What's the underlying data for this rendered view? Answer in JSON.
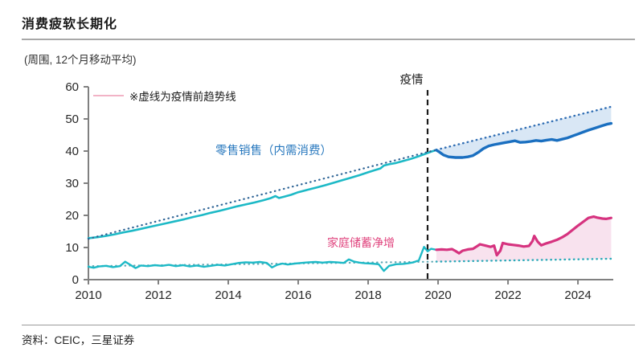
{
  "page": {
    "title": "消费疲软长期化",
    "subtitle": "(周围, 12个月移动平均)",
    "source": "资料：CEIC，三星证券"
  },
  "annotations": {
    "trend_note": "※虚线为疫情前趋势线",
    "pandemic_label": "疫情",
    "retail_label": "零售销售（内需消费）",
    "savings_label": "家庭储蓄净增"
  },
  "colors": {
    "teal_line": "#1db9c6",
    "blue_line": "#1a6fc0",
    "pink_line": "#d6337f",
    "navy_trend_dots": "#2e6496",
    "blue_trend_dots": "#2f6db3",
    "teal_trend_dots": "#2aa9b8",
    "teal_gray_trend_dots": "#5fa8b4",
    "blue_fill": "#d9e7f5",
    "pink_fill": "#f8e2ee",
    "axis": "#808080",
    "tick_text": "#262626",
    "pandemic_dash": "#1a1a1a",
    "note_sample_pink": "#f2b3c6"
  },
  "chart_data": {
    "type": "line",
    "title": "消费疲软长期化",
    "subtitle_units": "(周围, 12个月移动平均)",
    "xlim": [
      2010,
      2025.01
    ],
    "ylim": [
      0,
      60
    ],
    "x_ticks": [
      2010,
      2012,
      2014,
      2016,
      2018,
      2020,
      2022,
      2024
    ],
    "y_ticks": [
      0,
      10,
      20,
      30,
      40,
      50,
      60
    ],
    "grid": false,
    "pandemic_line_x": 2019.7,
    "legend_note": "※虚线为疫情前趋势线 (dashed lines are pre-pandemic trend lines)",
    "series": [
      {
        "name": "家庭储蓄净增-疫情前趋势线",
        "role": "savings_trend_pre",
        "style": "dotted",
        "color_key": "teal_gray_trend_dots",
        "width": 2.2,
        "points": [
          [
            2010.0,
            4.2
          ],
          [
            2019.95,
            5.6
          ]
        ]
      },
      {
        "name": "家庭储蓄净增-疫情前",
        "role": "savings_pre",
        "style": "solid",
        "color_key": "teal_line",
        "width": 2.4,
        "points": [
          [
            2010.0,
            4.0
          ],
          [
            2010.15,
            3.7
          ],
          [
            2010.3,
            4.1
          ],
          [
            2010.5,
            4.3
          ],
          [
            2010.7,
            3.9
          ],
          [
            2010.9,
            4.2
          ],
          [
            2011.05,
            5.6
          ],
          [
            2011.2,
            4.6
          ],
          [
            2011.35,
            3.6
          ],
          [
            2011.5,
            4.4
          ],
          [
            2011.7,
            4.2
          ],
          [
            2011.9,
            4.5
          ],
          [
            2012.1,
            4.3
          ],
          [
            2012.3,
            4.6
          ],
          [
            2012.5,
            4.2
          ],
          [
            2012.7,
            4.5
          ],
          [
            2012.9,
            4.1
          ],
          [
            2013.1,
            4.4
          ],
          [
            2013.3,
            4.0
          ],
          [
            2013.5,
            4.3
          ],
          [
            2013.7,
            4.6
          ],
          [
            2013.9,
            4.4
          ],
          [
            2014.1,
            4.8
          ],
          [
            2014.3,
            5.2
          ],
          [
            2014.5,
            5.4
          ],
          [
            2014.7,
            5.3
          ],
          [
            2014.9,
            5.5
          ],
          [
            2015.1,
            5.2
          ],
          [
            2015.25,
            3.8
          ],
          [
            2015.4,
            4.6
          ],
          [
            2015.55,
            5.0
          ],
          [
            2015.7,
            4.7
          ],
          [
            2015.9,
            5.0
          ],
          [
            2016.1,
            5.2
          ],
          [
            2016.3,
            5.4
          ],
          [
            2016.5,
            5.5
          ],
          [
            2016.7,
            5.3
          ],
          [
            2016.9,
            5.5
          ],
          [
            2017.1,
            5.4
          ],
          [
            2017.3,
            5.2
          ],
          [
            2017.45,
            6.3
          ],
          [
            2017.6,
            5.6
          ],
          [
            2017.75,
            5.3
          ],
          [
            2017.9,
            5.1
          ],
          [
            2018.1,
            5.0
          ],
          [
            2018.3,
            4.8
          ],
          [
            2018.45,
            2.7
          ],
          [
            2018.6,
            4.3
          ],
          [
            2018.8,
            4.8
          ],
          [
            2019.0,
            4.9
          ],
          [
            2019.15,
            5.1
          ],
          [
            2019.3,
            5.4
          ],
          [
            2019.45,
            6.0
          ],
          [
            2019.6,
            10.2
          ],
          [
            2019.7,
            8.8
          ],
          [
            2019.8,
            9.6
          ],
          [
            2019.95,
            9.3
          ]
        ]
      },
      {
        "name": "零售销售-疫情前",
        "role": "retail_pre",
        "style": "solid",
        "color_key": "teal_line",
        "width": 2.6,
        "points": [
          [
            2010.0,
            12.9
          ],
          [
            2010.25,
            13.2
          ],
          [
            2010.5,
            13.6
          ],
          [
            2010.75,
            14.1
          ],
          [
            2011.0,
            14.7
          ],
          [
            2011.25,
            15.2
          ],
          [
            2011.5,
            15.8
          ],
          [
            2011.75,
            16.4
          ],
          [
            2012.0,
            17.0
          ],
          [
            2012.25,
            17.6
          ],
          [
            2012.5,
            18.2
          ],
          [
            2012.75,
            18.8
          ],
          [
            2013.0,
            19.5
          ],
          [
            2013.25,
            20.1
          ],
          [
            2013.5,
            20.8
          ],
          [
            2013.75,
            21.4
          ],
          [
            2014.0,
            22.1
          ],
          [
            2014.25,
            22.8
          ],
          [
            2014.5,
            23.4
          ],
          [
            2014.75,
            24.0
          ],
          [
            2015.0,
            24.7
          ],
          [
            2015.2,
            25.3
          ],
          [
            2015.35,
            26.0
          ],
          [
            2015.45,
            25.4
          ],
          [
            2015.6,
            25.8
          ],
          [
            2015.8,
            26.4
          ],
          [
            2016.0,
            27.2
          ],
          [
            2016.25,
            27.9
          ],
          [
            2016.5,
            28.6
          ],
          [
            2016.75,
            29.3
          ],
          [
            2017.0,
            30.1
          ],
          [
            2017.25,
            30.9
          ],
          [
            2017.5,
            31.7
          ],
          [
            2017.75,
            32.5
          ],
          [
            2018.0,
            33.4
          ],
          [
            2018.2,
            34.1
          ],
          [
            2018.35,
            34.6
          ],
          [
            2018.45,
            35.5
          ],
          [
            2018.6,
            35.9
          ],
          [
            2018.8,
            36.3
          ],
          [
            2019.0,
            36.9
          ],
          [
            2019.2,
            37.5
          ],
          [
            2019.4,
            38.2
          ],
          [
            2019.6,
            39.0
          ],
          [
            2019.8,
            39.8
          ],
          [
            2019.95,
            40.3
          ]
        ]
      },
      {
        "name": "零售销售-疫情前趋势线",
        "role": "retail_trend_pre",
        "style": "dotted",
        "color_key": "navy_trend_dots",
        "width": 2.2,
        "points": [
          [
            2010.0,
            12.7
          ],
          [
            2019.95,
            40.4
          ]
        ]
      },
      {
        "name": "零售销售-趋势延长线",
        "role": "retail_trend_post",
        "style": "dotted",
        "color_key": "blue_trend_dots",
        "width": 2.4,
        "points": [
          [
            2019.95,
            40.4
          ],
          [
            2024.95,
            53.8
          ]
        ]
      },
      {
        "name": "家庭储蓄净增-趋势延长线",
        "role": "savings_trend_post",
        "style": "dotted",
        "color_key": "teal_trend_dots",
        "width": 2.4,
        "points": [
          [
            2019.95,
            5.6
          ],
          [
            2024.95,
            6.5
          ]
        ]
      },
      {
        "name": "零售销售（内需消费）",
        "role": "retail_post",
        "style": "solid",
        "color_key": "blue_line",
        "width": 3.4,
        "points": [
          [
            2019.95,
            40.3
          ],
          [
            2020.05,
            39.6
          ],
          [
            2020.15,
            38.8
          ],
          [
            2020.3,
            38.2
          ],
          [
            2020.5,
            38.0
          ],
          [
            2020.7,
            38.0
          ],
          [
            2020.85,
            38.2
          ],
          [
            2021.0,
            38.6
          ],
          [
            2021.15,
            39.6
          ],
          [
            2021.3,
            40.8
          ],
          [
            2021.45,
            41.6
          ],
          [
            2021.6,
            42.0
          ],
          [
            2021.75,
            42.3
          ],
          [
            2021.9,
            42.6
          ],
          [
            2022.05,
            42.9
          ],
          [
            2022.2,
            43.2
          ],
          [
            2022.35,
            42.7
          ],
          [
            2022.5,
            42.8
          ],
          [
            2022.65,
            43.0
          ],
          [
            2022.8,
            43.3
          ],
          [
            2022.95,
            43.1
          ],
          [
            2023.1,
            43.4
          ],
          [
            2023.25,
            43.6
          ],
          [
            2023.4,
            43.3
          ],
          [
            2023.55,
            43.7
          ],
          [
            2023.7,
            44.1
          ],
          [
            2023.85,
            44.7
          ],
          [
            2024.0,
            45.3
          ],
          [
            2024.15,
            45.9
          ],
          [
            2024.3,
            46.5
          ],
          [
            2024.5,
            47.2
          ],
          [
            2024.7,
            47.9
          ],
          [
            2024.85,
            48.4
          ],
          [
            2024.95,
            48.6
          ]
        ]
      },
      {
        "name": "家庭储蓄净增",
        "role": "savings_post",
        "style": "solid",
        "color_key": "pink_line",
        "width": 3.2,
        "points": [
          [
            2019.95,
            9.3
          ],
          [
            2020.1,
            9.4
          ],
          [
            2020.25,
            9.3
          ],
          [
            2020.4,
            9.5
          ],
          [
            2020.5,
            8.9
          ],
          [
            2020.6,
            8.2
          ],
          [
            2020.7,
            9.0
          ],
          [
            2020.85,
            9.4
          ],
          [
            2021.0,
            9.6
          ],
          [
            2021.1,
            10.3
          ],
          [
            2021.2,
            11.0
          ],
          [
            2021.35,
            10.6
          ],
          [
            2021.5,
            10.2
          ],
          [
            2021.6,
            10.6
          ],
          [
            2021.68,
            7.6
          ],
          [
            2021.78,
            9.0
          ],
          [
            2021.85,
            11.4
          ],
          [
            2022.0,
            11.0
          ],
          [
            2022.15,
            10.8
          ],
          [
            2022.3,
            10.6
          ],
          [
            2022.45,
            10.3
          ],
          [
            2022.6,
            10.5
          ],
          [
            2022.7,
            12.0
          ],
          [
            2022.75,
            13.6
          ],
          [
            2022.85,
            11.8
          ],
          [
            2022.95,
            10.7
          ],
          [
            2023.1,
            11.3
          ],
          [
            2023.25,
            11.8
          ],
          [
            2023.4,
            12.4
          ],
          [
            2023.55,
            13.2
          ],
          [
            2023.7,
            14.2
          ],
          [
            2023.85,
            15.5
          ],
          [
            2024.0,
            16.8
          ],
          [
            2024.15,
            18.0
          ],
          [
            2024.3,
            19.2
          ],
          [
            2024.45,
            19.6
          ],
          [
            2024.55,
            19.3
          ],
          [
            2024.7,
            19.0
          ],
          [
            2024.8,
            18.9
          ],
          [
            2024.95,
            19.2
          ]
        ]
      }
    ],
    "fills": [
      {
        "name": "零售销售-趋势缺口",
        "upper": "retail_trend_post",
        "lower": "retail_post",
        "color_key": "blue_fill"
      },
      {
        "name": "家庭储蓄-趋势超出",
        "upper": "savings_post",
        "lower": "savings_trend_post",
        "color_key": "pink_fill"
      }
    ]
  }
}
